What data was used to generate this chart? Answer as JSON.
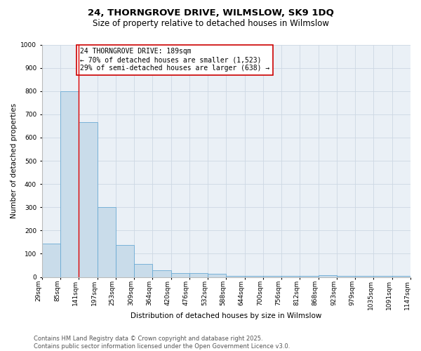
{
  "title": "24, THORNGROVE DRIVE, WILMSLOW, SK9 1DQ",
  "subtitle": "Size of property relative to detached houses in Wilmslow",
  "xlabel": "Distribution of detached houses by size in Wilmslow",
  "ylabel": "Number of detached properties",
  "bar_values": [
    145,
    800,
    665,
    300,
    137,
    55,
    28,
    18,
    18,
    15,
    4,
    4,
    4,
    4,
    4,
    8,
    5,
    4,
    4,
    4
  ],
  "bin_labels": [
    "29sqm",
    "85sqm",
    "141sqm",
    "197sqm",
    "253sqm",
    "309sqm",
    "364sqm",
    "420sqm",
    "476sqm",
    "532sqm",
    "588sqm",
    "644sqm",
    "700sqm",
    "756sqm",
    "812sqm",
    "868sqm",
    "923sqm",
    "979sqm",
    "1035sqm",
    "1091sqm",
    "1147sqm"
  ],
  "bar_color": "#c9dcea",
  "bar_edge_color": "#6aaad4",
  "grid_color": "#cdd8e3",
  "background_color": "#eaf0f6",
  "vline_x": 2.0,
  "vline_color": "#dd0000",
  "annotation_text": "24 THORNGROVE DRIVE: 189sqm\n← 70% of detached houses are smaller (1,523)\n29% of semi-detached houses are larger (638) →",
  "annotation_box_color": "#cc0000",
  "ylim": [
    0,
    1000
  ],
  "yticks": [
    0,
    100,
    200,
    300,
    400,
    500,
    600,
    700,
    800,
    900,
    1000
  ],
  "footer_line1": "Contains HM Land Registry data © Crown copyright and database right 2025.",
  "footer_line2": "Contains public sector information licensed under the Open Government Licence v3.0.",
  "title_fontsize": 9.5,
  "subtitle_fontsize": 8.5,
  "axis_label_fontsize": 7.5,
  "tick_fontsize": 6.5,
  "annotation_fontsize": 7,
  "footer_fontsize": 6
}
